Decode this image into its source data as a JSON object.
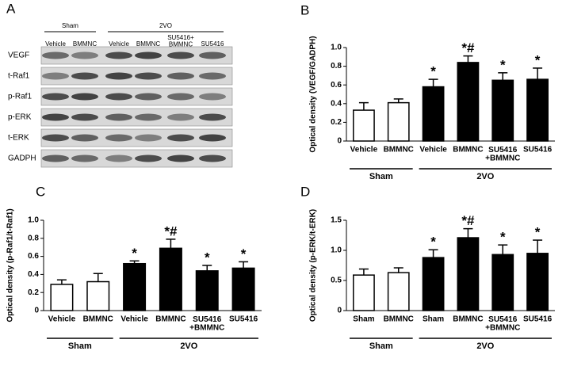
{
  "blot": {
    "panel": "A",
    "groups": [
      {
        "label": "Sham",
        "first": 0,
        "last": 1
      },
      {
        "label": "2VO",
        "first": 2,
        "last": 5
      }
    ],
    "lanes": [
      "Vehicle",
      "BMMNC",
      "Vehicle",
      "BMMNC",
      "SU5416+\nBMMNC",
      "SU5416"
    ],
    "rows": [
      "VEGF",
      "t-Raf1",
      "p-Raf1",
      "p-ERK",
      "t-ERK",
      "GADPH"
    ]
  },
  "chart_data": [
    {
      "type": "bar",
      "panel": "B",
      "ylabel": "Optical density (VEGF/GADPH)",
      "categories": [
        "Vehicle",
        "BMMNC",
        "Vehicle",
        "BMMNC",
        "SU5416\n+BMMNC",
        "SU5416"
      ],
      "values": [
        0.33,
        0.41,
        0.58,
        0.84,
        0.65,
        0.66
      ],
      "errors": [
        0.08,
        0.04,
        0.08,
        0.07,
        0.08,
        0.12
      ],
      "annotations": [
        null,
        null,
        "*",
        "*#",
        "*",
        "*"
      ],
      "colors": [
        "#ffffff",
        "#ffffff",
        "#000000",
        "#000000",
        "#000000",
        "#000000"
      ],
      "groups": [
        {
          "label": "Sham",
          "first": 0,
          "last": 1
        },
        {
          "label": "2VO",
          "first": 2,
          "last": 5
        }
      ],
      "ylim": [
        0,
        1
      ],
      "yticks": [
        0,
        0.2,
        0.4,
        0.6,
        0.8,
        {
          "value": 1,
          "label": "1.0"
        }
      ]
    },
    {
      "type": "bar",
      "panel": "C",
      "ylabel": "Optical density (p-Raf1/t-Raf1)",
      "categories": [
        "Vehicle",
        "BMMNC",
        "Vehicle",
        "BMMNC",
        "SU5416\n+BMMNC",
        "SU5416"
      ],
      "values": [
        0.29,
        0.32,
        0.52,
        0.69,
        0.44,
        0.47
      ],
      "errors": [
        0.05,
        0.09,
        0.03,
        0.1,
        0.06,
        0.07
      ],
      "annotations": [
        null,
        null,
        "*",
        "*#",
        "*",
        "*"
      ],
      "colors": [
        "#ffffff",
        "#ffffff",
        "#000000",
        "#000000",
        "#000000",
        "#000000"
      ],
      "groups": [
        {
          "label": "Sham",
          "first": 0,
          "last": 1
        },
        {
          "label": "2VO",
          "first": 2,
          "last": 5
        }
      ],
      "ylim": [
        0,
        1
      ],
      "yticks": [
        0,
        0.2,
        0.4,
        0.6,
        0.8,
        {
          "value": 1,
          "label": "1.0"
        }
      ]
    },
    {
      "type": "bar",
      "panel": "D",
      "ylabel": "Optical density (p-ERK/t-ERK)",
      "categories": [
        "Sham",
        "BMMNC",
        "Sham",
        "BMMNC",
        "SU5416\n+BMMNC",
        "SU5416"
      ],
      "values": [
        0.59,
        0.63,
        0.88,
        1.21,
        0.93,
        0.95
      ],
      "errors": [
        0.1,
        0.08,
        0.13,
        0.15,
        0.16,
        0.22
      ],
      "annotations": [
        null,
        null,
        "*",
        "*#",
        "*",
        "*"
      ],
      "colors": [
        "#ffffff",
        "#ffffff",
        "#000000",
        "#000000",
        "#000000",
        "#000000"
      ],
      "groups": [
        {
          "label": "Sham",
          "first": 0,
          "last": 1
        },
        {
          "label": "2VO",
          "first": 2,
          "last": 5
        }
      ],
      "ylim": [
        0,
        1.5
      ],
      "yticks": [
        0,
        0.5,
        {
          "value": 1,
          "label": "1.0"
        },
        1.5
      ]
    }
  ]
}
